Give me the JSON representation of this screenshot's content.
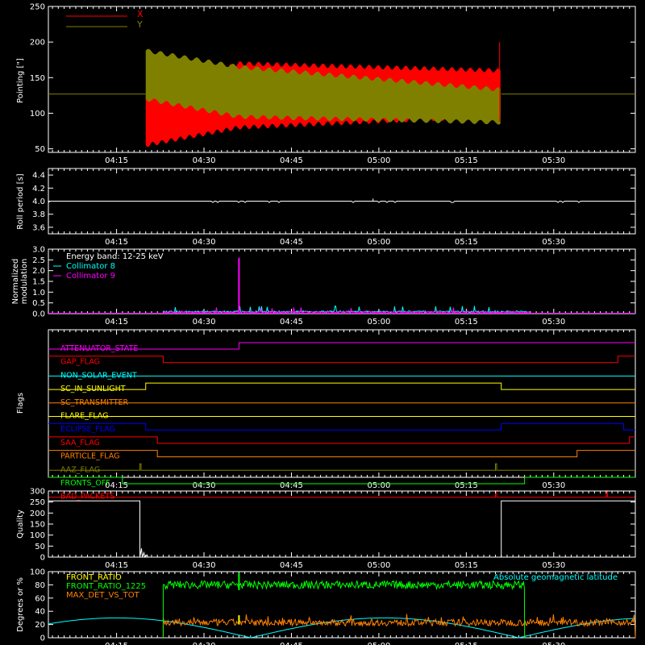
{
  "time_ticks": [
    "04:15",
    "04:30",
    "04:45",
    "05:00",
    "05:15",
    "05:30"
  ],
  "colors": {
    "X": "#ff0000",
    "Y": "#808000",
    "white": "#ffffff",
    "cyan": "#00ffff",
    "magenta": "#ff00ff",
    "green": "#00ff00",
    "orange": "#ff8000"
  },
  "chart_data": [
    {
      "type": "area",
      "ylabel": "Pointing [\"]",
      "ylim": [
        45,
        250
      ],
      "yticks": [
        50,
        100,
        150,
        200,
        250
      ],
      "series": [
        {
          "name": "X",
          "color": "#ff0000",
          "baseline": 127,
          "time": [
            "04:20",
            "04:36",
            "05:21"
          ],
          "low": [
            55,
            80,
            96
          ],
          "high": [
            125,
            170,
            160
          ]
        },
        {
          "name": "Y",
          "color": "#808000",
          "baseline": 127,
          "time": [
            "04:20",
            "04:36",
            "05:21"
          ],
          "low": [
            120,
            95,
            87
          ],
          "high": [
            188,
            165,
            133
          ]
        }
      ],
      "time_range": [
        "04:20",
        "05:21"
      ]
    },
    {
      "type": "line",
      "ylabel": "Roll period [s]",
      "ylim": [
        3.5,
        4.5
      ],
      "yticks": [
        "3.6",
        "3.8",
        "4.0",
        "4.2",
        "4.4"
      ],
      "series": [
        {
          "name": "",
          "color": "#ffffff",
          "value": 4.0
        }
      ]
    },
    {
      "type": "bar",
      "ylabel": "Normalized modulation",
      "ylim": [
        0,
        3.0
      ],
      "yticks": [
        "0.0",
        "0.5",
        "1.0",
        "1.5",
        "2.0",
        "2.5",
        "3.0"
      ],
      "legend": [
        "Energy band: 12-25 keV",
        "Collimator 8",
        "Collimator 9"
      ],
      "series": [
        {
          "name": "Collimator 8",
          "color": "#00ffff",
          "time_range": [
            "04:23",
            "05:26"
          ]
        },
        {
          "name": "Collimator 9",
          "color": "#ff00ff",
          "time_range": [
            "04:23",
            "05:26"
          ],
          "spike_time": "04:36",
          "spike_value": 2.6
        }
      ]
    },
    {
      "type": "line",
      "ylabel": "Flags",
      "flags": [
        {
          "name": "ATTENUATOR_STATE",
          "color": "#ff00ff",
          "changes": [
            [
              "04:36",
              1
            ]
          ]
        },
        {
          "name": "GAP_FLAG",
          "color": "#ff0000",
          "changes": [
            [
              "04:23",
              0
            ],
            [
              "05:41",
              1
            ]
          ]
        },
        {
          "name": "NON_SOLAR_EVENT",
          "color": "#00ffff",
          "changes": []
        },
        {
          "name": "SC_IN_SUNLIGHT",
          "color": "#ffff00",
          "changes": [
            [
              "04:20",
              1
            ],
            [
              "05:21",
              0
            ]
          ]
        },
        {
          "name": "SC_TRANSMITTER",
          "color": "#ff8000",
          "changes": []
        },
        {
          "name": "FLARE_FLAG",
          "color": "#ffff00",
          "changes": []
        },
        {
          "name": "ECLIPSE_FLAG",
          "color": "#0000ff",
          "changes": [
            [
              "04:20",
              0
            ],
            [
              "05:21",
              1
            ],
            [
              "05:42",
              0
            ]
          ]
        },
        {
          "name": "SAA_FLAG",
          "color": "#ff0000",
          "changes": [
            [
              "04:22",
              0
            ],
            [
              "05:43",
              1
            ]
          ]
        },
        {
          "name": "PARTICLE_FLAG",
          "color": "#ff8000",
          "changes": [
            [
              "04:22",
              0
            ],
            [
              "05:34",
              1
            ]
          ]
        },
        {
          "name": "AAZ_FLAG",
          "color": "#808000",
          "pulses": [
            "04:19",
            "05:20"
          ]
        },
        {
          "name": "FRONTS_OFF",
          "color": "#00ff00",
          "changes": [
            [
              "04:16",
              0
            ],
            [
              "05:25",
              1
            ]
          ]
        },
        {
          "name": "BAD_PACKETS",
          "color": "#ff0000",
          "pulses": [
            "05:20",
            "05:39"
          ]
        }
      ]
    },
    {
      "type": "line",
      "ylabel": "Quality",
      "ylim": [
        0,
        300
      ],
      "yticks": [
        0,
        50,
        100,
        150,
        200,
        250,
        300
      ],
      "series": [
        {
          "name": "",
          "color": "#ffffff",
          "high_value": 255,
          "drop_time": "04:19",
          "rise_time": "05:21"
        }
      ]
    },
    {
      "type": "line",
      "ylabel": "Degrees or %",
      "ylim": [
        0,
        100
      ],
      "yticks": [
        0,
        20,
        40,
        60,
        80,
        100
      ],
      "series": [
        {
          "name": "FRONT_RATIO",
          "color": "#ffff00"
        },
        {
          "name": "FRONT_RATIO_1225",
          "color": "#00ff00",
          "level": 80,
          "time_range": [
            "04:23",
            "05:25"
          ]
        },
        {
          "name": "MAX_DET_VS_TOT",
          "color": "#ff8000",
          "level": 22,
          "time_range": [
            "04:23",
            "05:44"
          ]
        },
        {
          "name": "Absolute geomagnetic latitude",
          "color": "#00ffff"
        }
      ]
    }
  ]
}
